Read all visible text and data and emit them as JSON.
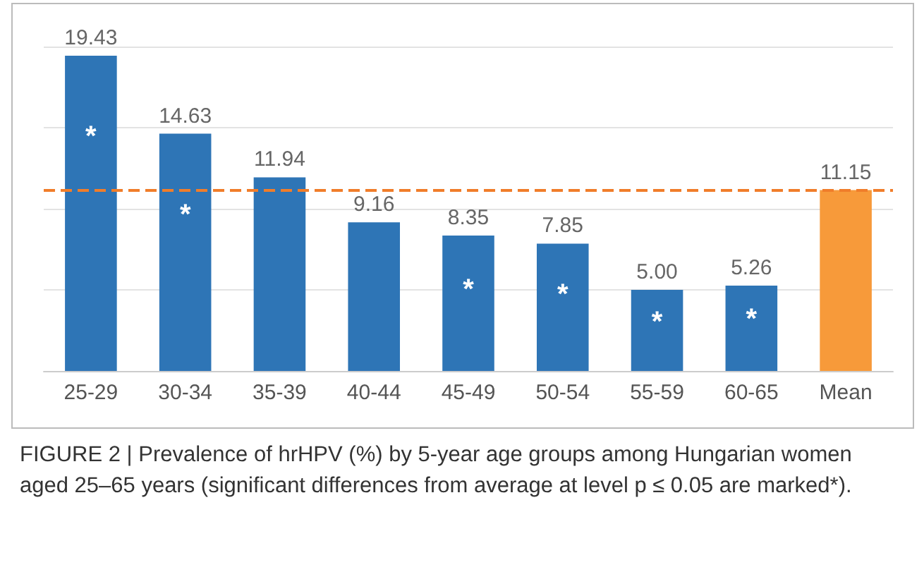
{
  "chart_data": {
    "type": "bar",
    "categories": [
      "25-29",
      "30-34",
      "35-39",
      "40-44",
      "45-49",
      "50-54",
      "55-59",
      "60-65",
      "Mean"
    ],
    "values": [
      19.43,
      14.63,
      11.94,
      9.16,
      8.35,
      7.85,
      5.0,
      5.26,
      11.15
    ],
    "value_labels": [
      "19.43",
      "14.63",
      "11.94",
      "9.16",
      "8.35",
      "7.85",
      "5.00",
      "5.26",
      "11.15"
    ],
    "colors": [
      "#2e75b6",
      "#2e75b6",
      "#2e75b6",
      "#2e75b6",
      "#2e75b6",
      "#2e75b6",
      "#2e75b6",
      "#2e75b6",
      "#f79a3a"
    ],
    "ylim": [
      0,
      20
    ],
    "yticks": [
      {
        "value": 0,
        "label": null
      },
      {
        "value": 5,
        "label": null
      },
      {
        "value": 10,
        "label": null
      },
      {
        "value": 15,
        "label": null
      },
      {
        "value": 20,
        "label": null
      }
    ],
    "tick_labels": "x",
    "grid": "y",
    "ref_lines": [
      {
        "axis": "y",
        "value": 11.15,
        "color": "#f07d2a",
        "line_style": "dashed"
      }
    ],
    "annotations": [
      {
        "text": "*",
        "x": "25-29",
        "y": 19.43
      },
      {
        "text": "*",
        "x": "30-34",
        "y": 14.63
      },
      {
        "text": "*",
        "x": "45-49",
        "y": 8.35
      },
      {
        "text": "*",
        "x": "50-54",
        "y": 7.85
      },
      {
        "text": "*",
        "x": "55-59",
        "y": 5.0
      },
      {
        "text": "*",
        "x": "60-65",
        "y": 5.26
      },
      "FIGURE 2 | Prevalence of hrHPV (%) by 5-year age groups among Hungarian women aged 25–65 years (significant differences from average at level p ≤ 0.05 are marked*)."
    ]
  }
}
